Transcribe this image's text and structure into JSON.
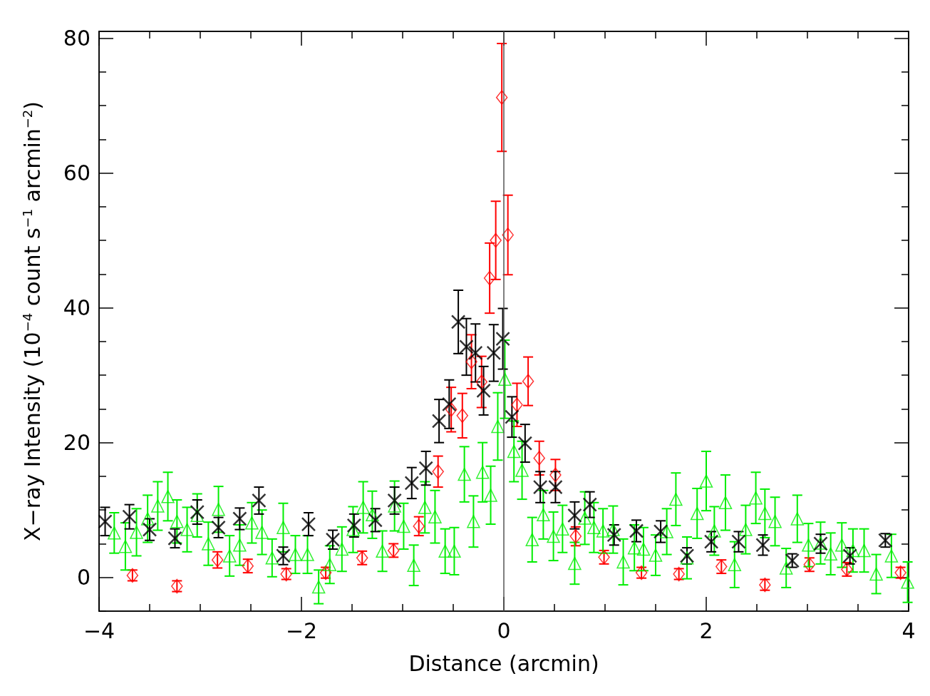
{
  "chart_data": {
    "type": "scatter",
    "xlabel": "Distance (arcmin)",
    "ylabel": "X−ray Intensity (10$^{−4}$ count s$^{−1}$ arcmin$^{−2}$)",
    "xlim": [
      -4,
      4
    ],
    "xticks": [
      {
        "value": -4,
        "label": "−4"
      },
      {
        "value": -3.5,
        "label": null
      },
      {
        "value": -3,
        "label": null
      },
      {
        "value": -2.5,
        "label": null
      },
      {
        "value": -2,
        "label": "−2"
      },
      {
        "value": -1.5,
        "label": null
      },
      {
        "value": -1,
        "label": null
      },
      {
        "value": -0.5,
        "label": null
      },
      {
        "value": 0,
        "label": "0"
      },
      {
        "value": 0.5,
        "label": null
      },
      {
        "value": 1,
        "label": null
      },
      {
        "value": 1.5,
        "label": null
      },
      {
        "value": 2,
        "label": "2"
      },
      {
        "value": 2.5,
        "label": null
      },
      {
        "value": 3,
        "label": null
      },
      {
        "value": 3.5,
        "label": null
      },
      {
        "value": 4,
        "label": "4"
      }
    ],
    "ylim": [
      -5,
      81
    ],
    "yticks": [
      {
        "value": -5,
        "label": null
      },
      {
        "value": 0,
        "label": "0"
      },
      {
        "value": 5,
        "label": null
      },
      {
        "value": 10,
        "label": null
      },
      {
        "value": 15,
        "label": null
      },
      {
        "value": 20,
        "label": "20"
      },
      {
        "value": 25,
        "label": null
      },
      {
        "value": 30,
        "label": null
      },
      {
        "value": 35,
        "label": null
      },
      {
        "value": 40,
        "label": "40"
      },
      {
        "value": 45,
        "label": null
      },
      {
        "value": 50,
        "label": null
      },
      {
        "value": 55,
        "label": null
      },
      {
        "value": 60,
        "label": "60"
      },
      {
        "value": 65,
        "label": null
      },
      {
        "value": 70,
        "label": null
      },
      {
        "value": 75,
        "label": null
      },
      {
        "value": 80,
        "label": "80"
      }
    ],
    "grid": false,
    "legend": false,
    "ref_lines": [
      {
        "axis": "x",
        "value": 0,
        "color": "#555555"
      }
    ],
    "series": [
      {
        "color": "#ff0000",
        "marker": "diamond",
        "x": [
          -3.67,
          -3.23,
          -2.83,
          -2.53,
          -2.15,
          -1.76,
          -1.4,
          -1.09,
          -0.84,
          -0.65,
          -0.52,
          -0.41,
          -0.32,
          -0.22,
          -0.14,
          -0.08,
          -0.02,
          0.04,
          0.13,
          0.24,
          0.35,
          0.51,
          0.71,
          0.99,
          1.36,
          1.73,
          2.15,
          2.58,
          3.02,
          3.39,
          3.92
        ],
        "values": [
          0.3,
          -1.3,
          2.6,
          1.7,
          0.5,
          0.7,
          2.9,
          4.0,
          7.6,
          15.7,
          24.9,
          24.0,
          32.0,
          29.0,
          44.4,
          50.0,
          71.2,
          50.8,
          25.6,
          29.1,
          17.7,
          15.2,
          6.1,
          3.0,
          0.7,
          0.5,
          1.6,
          -1.1,
          1.9,
          1.2,
          0.7
        ],
        "errors": [
          0.8,
          0.8,
          1.2,
          1.0,
          0.8,
          0.8,
          1.0,
          1.0,
          1.4,
          2.3,
          3.3,
          3.3,
          4.0,
          3.8,
          5.2,
          5.8,
          8.0,
          5.9,
          3.2,
          3.6,
          2.5,
          2.3,
          1.4,
          1.0,
          0.8,
          0.8,
          1.0,
          0.8,
          1.0,
          1.0,
          0.8
        ]
      },
      {
        "color": "#00ee00",
        "marker": "triangle",
        "x": [
          -3.85,
          -3.74,
          -3.63,
          -3.52,
          -3.42,
          -3.32,
          -3.23,
          -3.13,
          -3.03,
          -2.92,
          -2.82,
          -2.71,
          -2.61,
          -2.49,
          -2.39,
          -2.29,
          -2.18,
          -2.06,
          -1.94,
          -1.83,
          -1.72,
          -1.6,
          -1.49,
          -1.39,
          -1.3,
          -1.2,
          -1.08,
          -0.99,
          -0.89,
          -0.78,
          -0.68,
          -0.58,
          -0.49,
          -0.39,
          -0.3,
          -0.21,
          -0.13,
          -0.06,
          0.01,
          0.1,
          0.18,
          0.28,
          0.39,
          0.49,
          0.58,
          0.7,
          0.8,
          0.89,
          0.98,
          1.08,
          1.18,
          1.29,
          1.38,
          1.5,
          1.61,
          1.7,
          1.81,
          1.91,
          2.0,
          2.08,
          2.19,
          2.28,
          2.39,
          2.49,
          2.58,
          2.68,
          2.79,
          2.9,
          3.01,
          3.13,
          3.23,
          3.34,
          3.45,
          3.56,
          3.68,
          3.83,
          3.99
        ],
        "values": [
          6.6,
          4.6,
          6.7,
          8.7,
          10.6,
          12.0,
          8.3,
          7.1,
          9.2,
          5.0,
          10.1,
          3.2,
          4.8,
          8.1,
          6.7,
          2.9,
          7.4,
          3.4,
          3.4,
          -1.4,
          1.9,
          4.2,
          7.1,
          10.4,
          9.3,
          3.9,
          10.6,
          7.6,
          1.8,
          10.4,
          9.0,
          3.9,
          3.9,
          15.3,
          8.3,
          15.6,
          12.2,
          22.4,
          29.4,
          18.7,
          15.9,
          5.6,
          9.3,
          6.1,
          7.2,
          2.1,
          8.8,
          7.4,
          6.9,
          7.1,
          2.3,
          4.4,
          4.2,
          3.3,
          6.8,
          11.6,
          2.9,
          9.5,
          14.3,
          6.9,
          11.1,
          1.9,
          7.1,
          11.8,
          9.5,
          8.3,
          1.4,
          8.7,
          4.8,
          5.1,
          3.5,
          4.8,
          4.0,
          4.0,
          0.5,
          3.2,
          -0.7
        ],
        "errors": [
          3.0,
          3.5,
          3.5,
          3.5,
          3.6,
          3.6,
          3.2,
          3.3,
          3.2,
          3.2,
          3.4,
          3.0,
          3.0,
          3.0,
          3.3,
          2.8,
          3.6,
          2.8,
          2.8,
          2.5,
          2.8,
          3.3,
          3.4,
          3.8,
          3.5,
          3.0,
          3.7,
          3.4,
          3.0,
          3.8,
          3.9,
          3.3,
          3.5,
          4.1,
          3.8,
          4.4,
          4.3,
          5.0,
          5.8,
          4.5,
          4.3,
          3.3,
          3.6,
          3.6,
          3.5,
          3.1,
          3.9,
          3.7,
          3.3,
          3.5,
          3.4,
          3.4,
          3.2,
          3.0,
          3.4,
          3.9,
          3.1,
          3.7,
          4.4,
          3.6,
          4.1,
          3.4,
          3.6,
          3.8,
          3.6,
          3.6,
          2.9,
          3.5,
          3.2,
          3.1,
          3.1,
          3.3,
          3.2,
          3.2,
          2.9,
          3.2,
          3.0
        ]
      },
      {
        "color": "#000000",
        "marker": "cross",
        "x": [
          -3.94,
          -3.7,
          -3.5,
          -3.25,
          -3.03,
          -2.82,
          -2.61,
          -2.42,
          -2.18,
          -1.93,
          -1.69,
          -1.48,
          -1.27,
          -1.08,
          -0.91,
          -0.77,
          -0.64,
          -0.54,
          -0.45,
          -0.37,
          -0.28,
          -0.2,
          -0.1,
          -0.01,
          0.08,
          0.21,
          0.36,
          0.51,
          0.7,
          0.85,
          1.09,
          1.31,
          1.55,
          1.81,
          2.05,
          2.32,
          2.56,
          2.85,
          3.13,
          3.42,
          3.77
        ],
        "values": [
          8.3,
          9.0,
          7.1,
          5.8,
          9.7,
          7.4,
          8.7,
          11.4,
          3.2,
          7.9,
          5.6,
          7.7,
          8.5,
          11.4,
          14.0,
          16.2,
          23.2,
          25.7,
          37.9,
          34.2,
          33.3,
          27.7,
          33.3,
          35.4,
          23.8,
          19.9,
          13.4,
          13.4,
          9.2,
          10.8,
          6.3,
          6.9,
          6.8,
          3.2,
          5.3,
          5.3,
          4.8,
          2.5,
          5.0,
          3.2,
          5.5
        ],
        "errors": [
          2.1,
          1.8,
          1.6,
          1.4,
          1.8,
          1.5,
          1.6,
          2.0,
          1.3,
          1.7,
          1.4,
          1.7,
          1.7,
          2.0,
          2.3,
          2.5,
          3.2,
          3.6,
          4.7,
          4.2,
          4.3,
          3.6,
          4.2,
          4.5,
          3.0,
          2.8,
          2.3,
          2.3,
          2.0,
          1.9,
          1.5,
          1.6,
          1.6,
          1.2,
          1.5,
          1.5,
          1.5,
          1.0,
          1.4,
          1.2,
          1.0
        ]
      }
    ]
  }
}
